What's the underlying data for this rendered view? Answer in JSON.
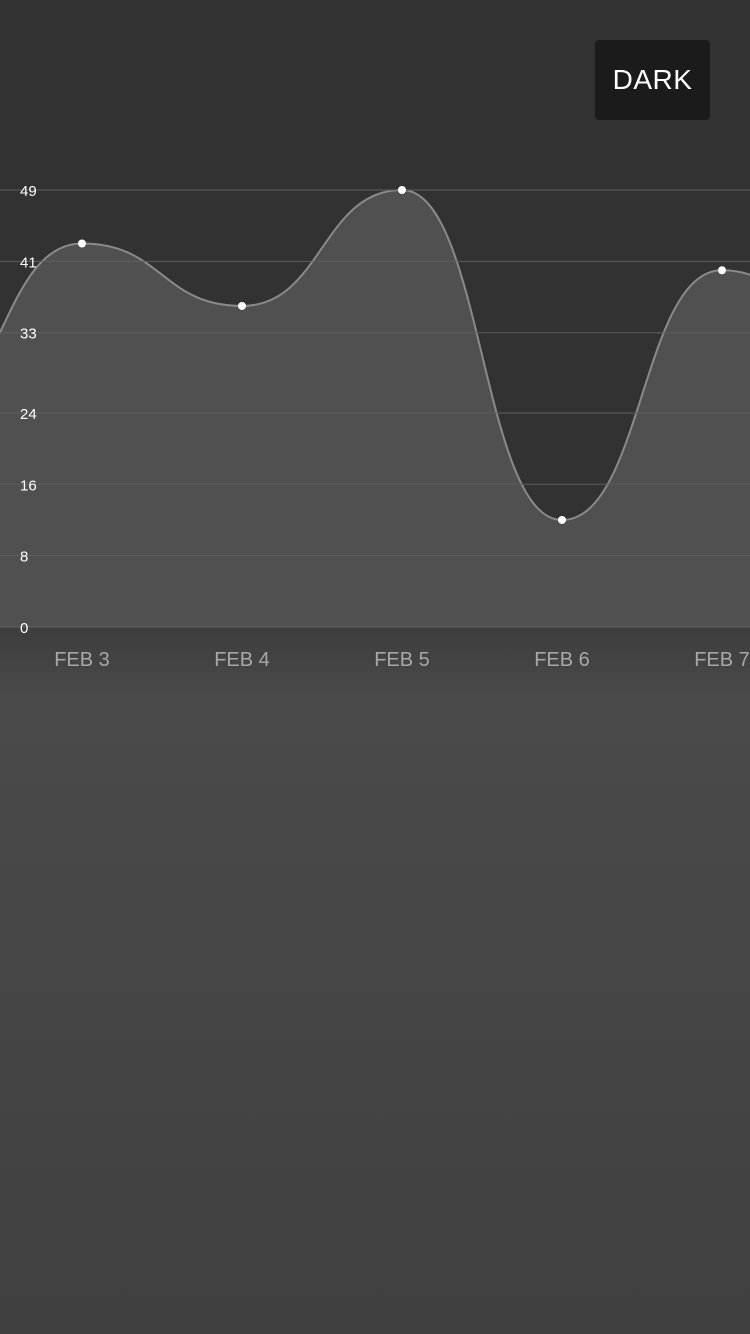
{
  "toolbar": {
    "theme_button_label": "DARK"
  },
  "colors": {
    "background_top": "#323232",
    "background_bottom": "#454545",
    "area_fill": "#505050",
    "line": "#8a8a8a",
    "grid": "#5e5e5e",
    "point": "#ffffff",
    "button_bg": "#1b1b1b"
  },
  "chart_data": {
    "type": "area",
    "smooth": true,
    "categories": [
      "FEB 3",
      "FEB 4",
      "FEB 5",
      "FEB 6",
      "FEB 7"
    ],
    "values": [
      43,
      36,
      49,
      12,
      40
    ],
    "y_ticks": [
      "0",
      "8",
      "16",
      "24",
      "33",
      "41",
      "49"
    ],
    "ylim": [
      0,
      49
    ],
    "grid": true,
    "legend": "none",
    "title": "",
    "xlabel": "",
    "ylabel": ""
  }
}
